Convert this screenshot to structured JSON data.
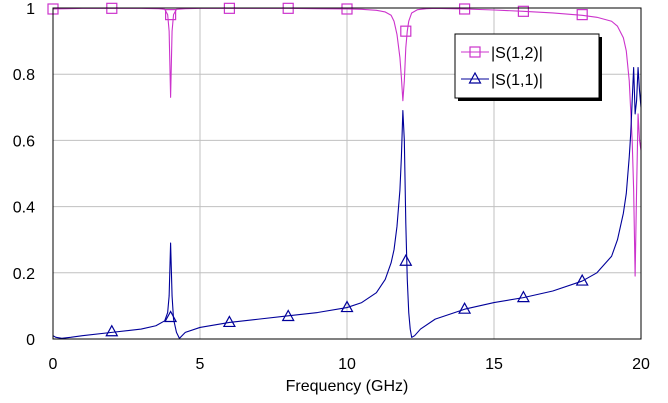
{
  "chart_data": {
    "type": "line",
    "title": "",
    "xlabel": "Frequency (GHz)",
    "ylabel": "",
    "xlim": [
      0,
      20
    ],
    "ylim": [
      0,
      1
    ],
    "xticks": [
      0,
      5,
      10,
      15,
      20
    ],
    "xtick_labels": [
      "0",
      "5",
      "10",
      "15",
      "20"
    ],
    "yticks": [
      0,
      0.2,
      0.4,
      0.6,
      0.8,
      1
    ],
    "ytick_labels": [
      "0",
      "0.2",
      "0.4",
      "0.6",
      "0.8",
      "1"
    ],
    "grid": true,
    "legend_position": "top-right",
    "series": [
      {
        "name": "|S(1,2)|",
        "color": "#cc33cc",
        "marker": "square",
        "x": [
          0,
          0.5,
          1,
          2,
          3,
          3.6,
          3.8,
          3.9,
          3.95,
          4.0,
          4.05,
          4.1,
          4.2,
          4.5,
          5,
          6,
          7,
          8,
          9,
          10,
          10.5,
          11,
          11.3,
          11.5,
          11.6,
          11.7,
          11.8,
          11.85,
          11.9,
          11.95,
          12.0,
          12.05,
          12.1,
          12.2,
          12.4,
          12.7,
          13,
          14,
          15,
          16,
          17,
          18,
          18.5,
          19,
          19.2,
          19.4,
          19.5,
          19.6,
          19.7,
          19.75,
          19.8,
          19.85,
          19.9,
          19.95,
          20.0
        ],
        "y": [
          0.997,
          0.998,
          0.999,
          0.999,
          0.999,
          0.998,
          0.996,
          0.98,
          0.93,
          0.73,
          0.93,
          0.98,
          0.996,
          0.998,
          0.999,
          0.999,
          0.999,
          0.999,
          0.998,
          0.997,
          0.996,
          0.993,
          0.988,
          0.978,
          0.96,
          0.92,
          0.85,
          0.79,
          0.72,
          0.78,
          0.88,
          0.93,
          0.96,
          0.985,
          0.995,
          0.998,
          0.999,
          0.997,
          0.994,
          0.99,
          0.985,
          0.978,
          0.972,
          0.96,
          0.945,
          0.91,
          0.87,
          0.78,
          0.6,
          0.45,
          0.19,
          0.45,
          0.68,
          0.6,
          0.57
        ],
        "marker_x": [
          0,
          2,
          4,
          6,
          8,
          10,
          12,
          14,
          16,
          18
        ],
        "marker_y": [
          0.997,
          0.999,
          0.98,
          0.999,
          0.999,
          0.997,
          0.93,
          0.997,
          0.99,
          0.98
        ]
      },
      {
        "name": "|S(1,1)|",
        "color": "#00009a",
        "marker": "triangle",
        "x": [
          0,
          0.1,
          0.3,
          0.6,
          1,
          2,
          3,
          3.5,
          3.8,
          3.9,
          3.95,
          4.0,
          4.05,
          4.1,
          4.2,
          4.3,
          4.5,
          5,
          6,
          7,
          8,
          9,
          10,
          10.5,
          11,
          11.3,
          11.5,
          11.6,
          11.7,
          11.8,
          11.85,
          11.9,
          11.95,
          12.0,
          12.05,
          12.1,
          12.15,
          12.2,
          12.3,
          12.5,
          13,
          14,
          15,
          16,
          17,
          18,
          18.5,
          19,
          19.2,
          19.4,
          19.5,
          19.6,
          19.65,
          19.7,
          19.75,
          19.8,
          19.85,
          19.9,
          19.95,
          20.0
        ],
        "y": [
          0.01,
          0.005,
          0.002,
          0.005,
          0.01,
          0.02,
          0.03,
          0.04,
          0.055,
          0.08,
          0.13,
          0.29,
          0.13,
          0.06,
          0.02,
          0.002,
          0.02,
          0.035,
          0.05,
          0.06,
          0.07,
          0.08,
          0.095,
          0.11,
          0.14,
          0.18,
          0.23,
          0.27,
          0.34,
          0.45,
          0.55,
          0.69,
          0.6,
          0.35,
          0.18,
          0.08,
          0.03,
          0.005,
          0.01,
          0.03,
          0.06,
          0.09,
          0.11,
          0.125,
          0.145,
          0.175,
          0.2,
          0.25,
          0.3,
          0.38,
          0.44,
          0.55,
          0.62,
          0.72,
          0.82,
          0.68,
          0.72,
          0.82,
          0.75,
          0.7
        ],
        "marker_x": [
          2,
          4,
          6,
          8,
          10,
          12,
          14,
          16,
          18
        ],
        "marker_y": [
          0.022,
          0.065,
          0.05,
          0.068,
          0.095,
          0.235,
          0.09,
          0.125,
          0.175
        ]
      }
    ]
  }
}
